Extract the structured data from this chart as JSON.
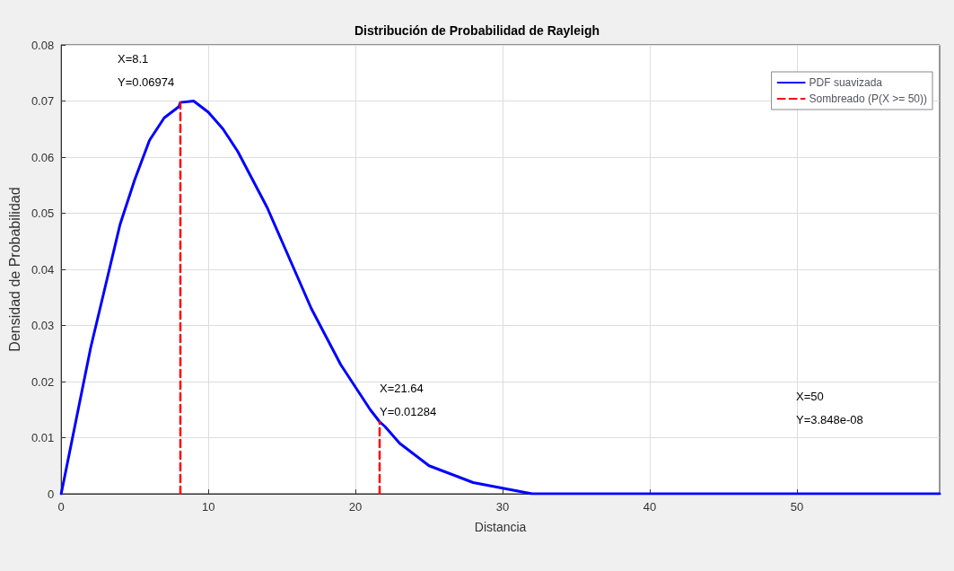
{
  "chart_data": {
    "type": "line",
    "title": "Distribución de Probabilidad de Rayleigh",
    "xlabel": "Distancia",
    "ylabel": "Densidad de Probabilidad",
    "xlim": [
      0,
      59.7
    ],
    "xticks": [
      0,
      10,
      20,
      30,
      40,
      50
    ],
    "ylim": [
      0,
      0.08
    ],
    "yticks": [
      0,
      0.01,
      0.02,
      0.03,
      0.04,
      0.05,
      0.06,
      0.07,
      0.08
    ],
    "grid": true,
    "legend": "top right",
    "series": [
      {
        "name": "PDF suavizada",
        "color": "#0000ff",
        "line_style": "solid",
        "x": [
          0,
          1,
          2,
          3,
          4,
          5,
          6,
          7,
          8,
          8.1,
          9,
          10,
          11,
          12,
          13,
          14,
          15,
          16,
          17,
          18,
          19,
          20,
          21,
          21.64,
          22,
          23,
          24,
          25,
          26,
          27,
          28,
          30,
          32,
          35,
          40,
          50,
          59.7
        ],
        "values": [
          0,
          0.013,
          0.026,
          0.037,
          0.048,
          0.056,
          0.063,
          0.067,
          0.069,
          0.06974,
          0.07,
          0.068,
          0.065,
          0.061,
          0.056,
          0.051,
          0.045,
          0.039,
          0.033,
          0.028,
          0.023,
          0.019,
          0.015,
          0.01284,
          0.012,
          0.009,
          0.007,
          0.005,
          0.004,
          0.003,
          0.002,
          0.001,
          0,
          0,
          0,
          0,
          0
        ]
      },
      {
        "name": "Sombreado (P(X >= 50))",
        "color": "#ff0000",
        "line_style": "dashed",
        "x": [
          8.1,
          8.1
        ],
        "values": [
          0,
          0.06974
        ]
      },
      {
        "color": "#ff0000",
        "line_style": "dashed",
        "x": [
          21.64,
          21.64
        ],
        "values": [
          0,
          0.01284
        ]
      }
    ],
    "annotations": [
      {
        "text": "X=8.1\nY=0.06974",
        "x": 8.1,
        "y": 0.06974
      },
      {
        "text": "X=21.64\nY=0.01284",
        "x": 21.64,
        "y": 0.01284
      },
      "X=50\nY=3.848e-08"
    ]
  }
}
